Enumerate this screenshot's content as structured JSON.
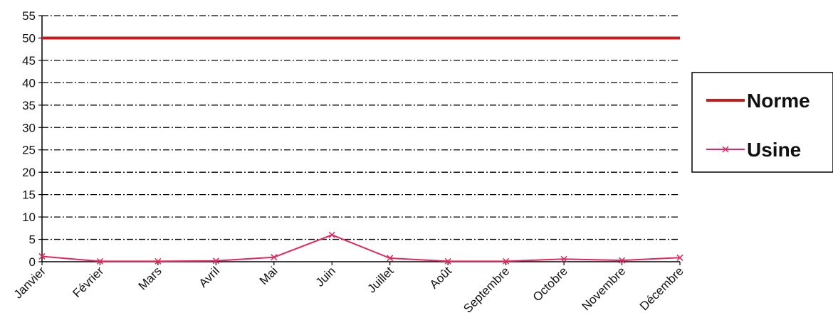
{
  "chart_data": {
    "type": "line",
    "title": "",
    "xlabel": "",
    "ylabel": "",
    "categories": [
      "Janvier",
      "Février",
      "Mars",
      "Avril",
      "Mai",
      "Juin",
      "Juillet",
      "Août",
      "Septembre",
      "Octobre",
      "Novembre",
      "Décembre"
    ],
    "ylim": [
      0,
      55
    ],
    "yticks": [
      0,
      5,
      10,
      15,
      20,
      25,
      30,
      35,
      40,
      45,
      50,
      55
    ],
    "grid": "horizontal dash-dot",
    "legend_position": "right",
    "series": [
      {
        "name": "Norme",
        "values": [
          50,
          50,
          50,
          50,
          50,
          50,
          50,
          50,
          50,
          50,
          50,
          50
        ],
        "color": "#cc1a1a",
        "marker": "none"
      },
      {
        "name": "Usine",
        "values": [
          1.2,
          0.1,
          0.1,
          0.2,
          1.0,
          6.0,
          0.8,
          0.1,
          0.1,
          0.6,
          0.3,
          0.9
        ],
        "color": "#e8245c",
        "marker": "x"
      }
    ]
  }
}
